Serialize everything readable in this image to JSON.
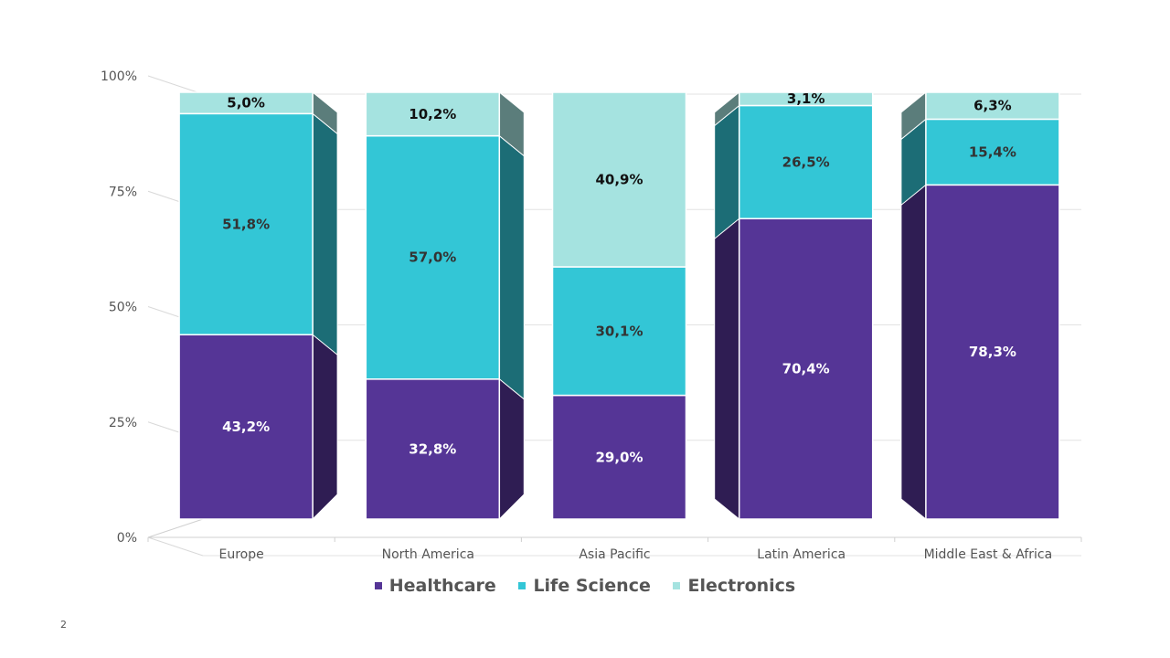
{
  "page_number": "2",
  "chart_data": {
    "type": "bar",
    "stacked": true,
    "percent_stacked": true,
    "three_d": true,
    "categories": [
      "Europe",
      "North America",
      "Asia Pacific",
      "Latin America",
      "Middle East & Africa"
    ],
    "series": [
      {
        "name": "Healthcare",
        "values": [
          43.2,
          32.8,
          29.0,
          70.4,
          78.3
        ],
        "labels": [
          "43,2%",
          "32,8%",
          "29,0%",
          "70,4%",
          "78,3%"
        ],
        "color": "#553596",
        "label_color": "#ffffff"
      },
      {
        "name": "Life Science",
        "values": [
          51.8,
          57.0,
          30.1,
          26.5,
          15.4
        ],
        "labels": [
          "51,8%",
          "57,0%",
          "30,1%",
          "26,5%",
          "15,4%"
        ],
        "color": "#33C6D6",
        "label_color": "#333333"
      },
      {
        "name": "Electronics",
        "values": [
          5.0,
          10.2,
          40.9,
          3.1,
          6.3
        ],
        "labels": [
          "5,0%",
          "10,2%",
          "40,9%",
          "3,1%",
          "6,3%"
        ],
        "color": "#A5E3E0",
        "label_color": "#111111"
      }
    ],
    "y_ticks": [
      "0%",
      "25%",
      "50%",
      "75%",
      "100%"
    ],
    "ylim": [
      0,
      100
    ],
    "grid": true,
    "legend_position": "bottom"
  }
}
